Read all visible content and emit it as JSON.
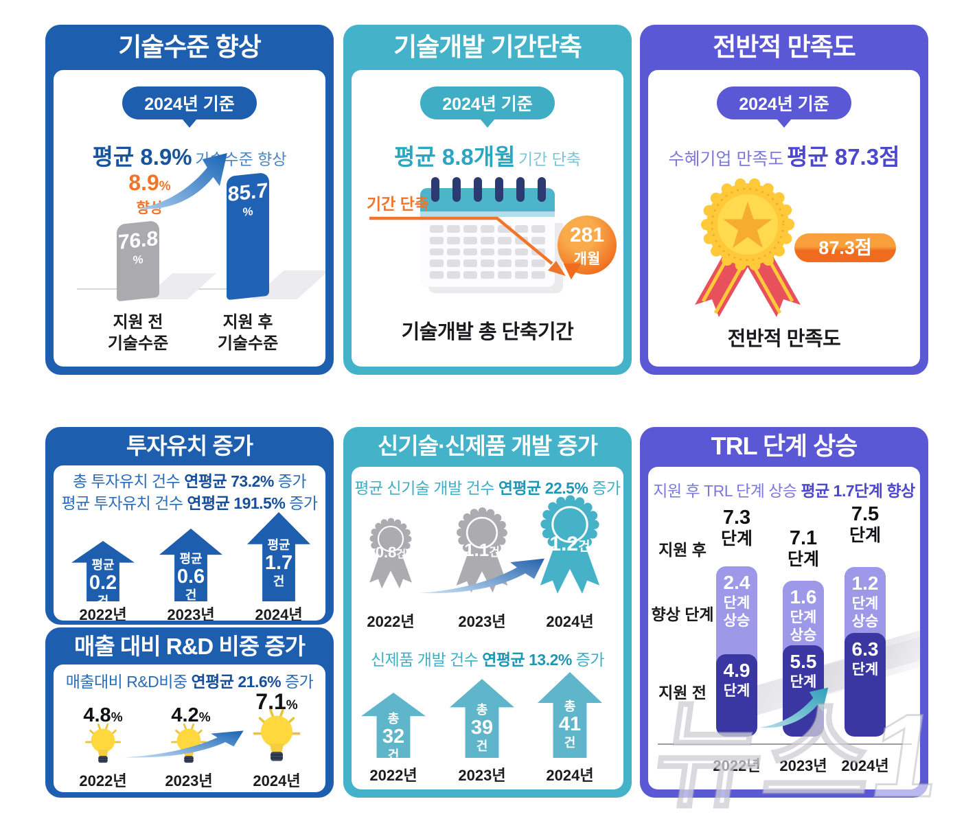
{
  "watermark": "뉴스1",
  "colors": {
    "blue": "#1D5FAE",
    "teal": "#44B3C9",
    "purple": "#5B58D6",
    "orange": "#F0752B",
    "gray_bar": "#ABABAF",
    "trl_light": "#9D99E8",
    "trl_dark": "#3B37A2"
  },
  "panels": {
    "tech_level": {
      "title": "기술수준 향상",
      "badge": "2024년 기준",
      "headline_strong": "평균 8.9%",
      "headline_rest": "기술수준 향상",
      "gain_value": "8.9",
      "gain_unit": "%",
      "gain_label": "향상",
      "bars": [
        {
          "value": "76.8",
          "unit": "%",
          "label1": "지원 전",
          "label2": "기술수준"
        },
        {
          "value": "85.7",
          "unit": "%",
          "label1": "지원 후",
          "label2": "기술수준"
        }
      ]
    },
    "dev_time": {
      "title": "기술개발 기간단축",
      "badge": "2024년 기준",
      "headline_strong": "평균 8.8개월",
      "headline_rest": "기간 단축",
      "callout": "기간 단축",
      "bubble_value": "281",
      "bubble_unit": "개월",
      "caption": "기술개발 총 단축기간"
    },
    "satisfaction": {
      "title": "전반적 만족도",
      "badge": "2024년 기준",
      "headline_rest": "수혜기업 만족도",
      "headline_strong": "평균 87.3점",
      "pill": "87.3점",
      "caption": "전반적 만족도"
    },
    "investment": {
      "title": "투자유치 증가",
      "line1_pre": "총 투자유치 건수",
      "line1_strong": "연평균 73.2%",
      "line1_post": "증가",
      "line2_pre": "평균 투자유치 건수",
      "line2_strong": "연평균 191.5%",
      "line2_post": "증가",
      "arrows": [
        {
          "cap": "평균",
          "value": "0.2",
          "unit": "건",
          "year": "2022년"
        },
        {
          "cap": "평균",
          "value": "0.6",
          "unit": "건",
          "year": "2023년"
        },
        {
          "cap": "평균",
          "value": "1.7",
          "unit": "건",
          "year": "2024년"
        }
      ]
    },
    "rnd": {
      "title": "매출 대비 R&D 비중 증가",
      "line_pre": "매출대비 R&D비중",
      "line_strong": "연평균 21.6%",
      "line_post": "증가",
      "items": [
        {
          "value": "4.8",
          "unit": "%",
          "year": "2022년"
        },
        {
          "value": "4.2",
          "unit": "%",
          "year": "2023년"
        },
        {
          "value": "7.1",
          "unit": "%",
          "year": "2024년"
        }
      ]
    },
    "newdev": {
      "title": "신기술·신제품 개발 증가",
      "line1_pre": "평균 신기술 개발 건수",
      "line1_strong": "연평균 22.5%",
      "line1_post": "증가",
      "badges": [
        {
          "value": "0.8",
          "unit": "건",
          "year": "2022년"
        },
        {
          "value": "1.1",
          "unit": "건",
          "year": "2023년"
        },
        {
          "value": "1.2",
          "unit": "건",
          "year": "2024년"
        }
      ],
      "line2_pre": "신제품 개발 건수",
      "line2_strong": "연평균 13.2%",
      "line2_post": "증가",
      "arrows": [
        {
          "cap": "총",
          "value": "32",
          "unit": "건",
          "year": "2022년"
        },
        {
          "cap": "총",
          "value": "39",
          "unit": "건",
          "year": "2023년"
        },
        {
          "cap": "총",
          "value": "41",
          "unit": "건",
          "year": "2024년"
        }
      ]
    },
    "trl": {
      "title": "TRL 단계 상승",
      "line_pre": "지원 후 TRL 단계 상승",
      "line_strong": "평균 1.7단계 향상",
      "labels": {
        "after": "지원 후",
        "gain": "향상 단계",
        "before": "지원 전"
      },
      "cols": [
        {
          "after_v": "7.3",
          "after_u": "단계",
          "gain_v": "2.4",
          "gain_u1": "단계",
          "gain_u2": "상승",
          "before_v": "4.9",
          "before_u": "단계",
          "year": "2022년"
        },
        {
          "after_v": "7.1",
          "after_u": "단계",
          "gain_v": "1.6",
          "gain_u1": "단계",
          "gain_u2": "상승",
          "before_v": "5.5",
          "before_u": "단계",
          "year": "2023년"
        },
        {
          "after_v": "7.5",
          "after_u": "단계",
          "gain_v": "1.2",
          "gain_u1": "단계",
          "gain_u2": "상승",
          "before_v": "6.3",
          "before_u": "단계",
          "year": "2024년"
        }
      ]
    }
  },
  "chart_data": [
    {
      "type": "bar",
      "title": "기술수준 향상 (2024년 기준)",
      "categories": [
        "지원 전 기술수준",
        "지원 후 기술수준"
      ],
      "values": [
        76.8,
        85.7
      ],
      "unit": "%",
      "ylim": [
        0,
        100
      ],
      "annotations": [
        "평균 8.9% 기술수준 향상",
        "8.9% 향상"
      ]
    },
    {
      "type": "table",
      "title": "기술개발 기간단축 (2024년 기준)",
      "rows": [
        [
          "평균 기간 단축",
          "8.8개월"
        ],
        [
          "기술개발 총 단축기간",
          "281개월"
        ]
      ]
    },
    {
      "type": "table",
      "title": "전반적 만족도 (2024년 기준)",
      "rows": [
        [
          "수혜기업 만족도",
          "평균 87.3점"
        ]
      ]
    },
    {
      "type": "bar",
      "title": "투자유치 증가",
      "categories": [
        "2022년",
        "2023년",
        "2024년"
      ],
      "values": [
        0.2,
        0.6,
        1.7
      ],
      "unit": "건(평균)",
      "annotations": [
        "총 투자유치 건수 연평균 73.2% 증가",
        "평균 투자유치 건수 연평균 191.5% 증가"
      ]
    },
    {
      "type": "bar",
      "title": "매출 대비 R&D 비중 증가",
      "categories": [
        "2022년",
        "2023년",
        "2024년"
      ],
      "values": [
        4.8,
        4.2,
        7.1
      ],
      "unit": "%",
      "annotations": [
        "매출대비 R&D비중 연평균 21.6% 증가"
      ]
    },
    {
      "type": "bar",
      "title": "평균 신기술 개발 건수",
      "categories": [
        "2022년",
        "2023년",
        "2024년"
      ],
      "values": [
        0.8,
        1.1,
        1.2
      ],
      "unit": "건",
      "annotations": [
        "연평균 22.5% 증가"
      ]
    },
    {
      "type": "bar",
      "title": "신제품 개발 건수",
      "categories": [
        "2022년",
        "2023년",
        "2024년"
      ],
      "values": [
        32,
        39,
        41
      ],
      "unit": "건(총)",
      "annotations": [
        "연평균 13.2% 증가"
      ]
    },
    {
      "type": "bar",
      "title": "TRL 단계 상승",
      "categories": [
        "2022년",
        "2023년",
        "2024년"
      ],
      "series": [
        {
          "name": "지원 전",
          "values": [
            4.9,
            5.5,
            6.3
          ]
        },
        {
          "name": "향상 단계",
          "values": [
            2.4,
            1.6,
            1.2
          ]
        },
        {
          "name": "지원 후",
          "values": [
            7.3,
            7.1,
            7.5
          ]
        }
      ],
      "unit": "단계",
      "annotations": [
        "지원 후 TRL 단계 상승 평균 1.7단계 향상"
      ]
    }
  ]
}
